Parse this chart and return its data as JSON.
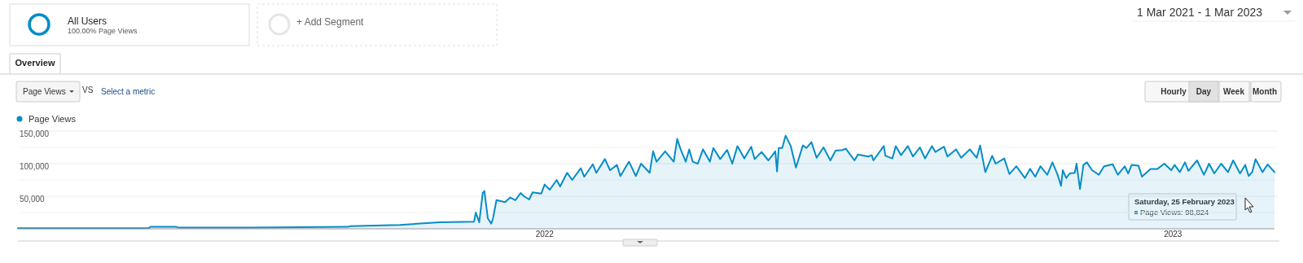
{
  "chart_data": {
    "type": "area",
    "legend": "top left",
    "grid": "y",
    "ylim": [
      0,
      150000
    ],
    "yticks": [
      {
        "value": 25000,
        "label": null
      },
      {
        "value": 50000,
        "label": "50,000"
      },
      {
        "value": 75000,
        "label": null
      },
      {
        "value": 100000,
        "label": "100,000"
      },
      {
        "value": 125000,
        "label": null
      },
      {
        "value": 150000,
        "label": "150,000"
      }
    ],
    "xlim": [
      "2021-03-01",
      "2023-03-01"
    ],
    "xticks": [
      {
        "value": "2022-01-01",
        "label": "2022"
      },
      {
        "value": "2023-01-01",
        "label": "2023"
      }
    ],
    "annotations": [
      "All Users",
      "100.00% Page Views",
      "+ Add Segment",
      "1 Mar 2021 - 1 Mar 2023",
      "Overview",
      "Page Views",
      "VS",
      "Select a metric",
      "Hourly",
      "Day",
      "Week",
      "Month",
      "Saturday, 25 February 2023",
      "Page Views: 98,824"
    ],
    "series": [
      {
        "name": "Page Views",
        "color": "#058dc7",
        "x": [
          "2021-03-01",
          "2021-05-16",
          "2021-05-17",
          "2021-06-01",
          "2021-06-02",
          "2021-07-15",
          "2021-09-09",
          "2021-09-10",
          "2021-10-09",
          "2021-11-01",
          "2021-11-21",
          "2021-11-22",
          "2021-11-24",
          "2021-11-26",
          "2021-11-27",
          "2021-11-29",
          "2021-12-01",
          "2021-12-02",
          "2021-12-04",
          "2021-12-09",
          "2021-12-12",
          "2021-12-15",
          "2021-12-18",
          "2021-12-20",
          "2021-12-23",
          "2021-12-25",
          "2021-12-30",
          "2022-01-01",
          "2022-01-04",
          "2022-01-08",
          "2022-01-10",
          "2022-01-14",
          "2022-01-17",
          "2022-01-22",
          "2022-01-24",
          "2022-01-29",
          "2022-01-31",
          "2022-02-05",
          "2022-02-08",
          "2022-02-12",
          "2022-02-14",
          "2022-02-19",
          "2022-02-23",
          "2022-02-26",
          "2022-03-03",
          "2022-03-05",
          "2022-03-07",
          "2022-03-12",
          "2022-03-17",
          "2022-03-19",
          "2022-03-21",
          "2022-03-24",
          "2022-03-26",
          "2022-03-28",
          "2022-03-31",
          "2022-04-03",
          "2022-04-07",
          "2022-04-09",
          "2022-04-13",
          "2022-04-17",
          "2022-04-20",
          "2022-04-23",
          "2022-04-27",
          "2022-05-01",
          "2022-05-03",
          "2022-05-07",
          "2022-05-11",
          "2022-05-15",
          "2022-05-16",
          "2022-05-17",
          "2022-05-19",
          "2022-05-21",
          "2022-05-24",
          "2022-05-27",
          "2022-05-31",
          "2022-06-02",
          "2022-06-05",
          "2022-06-08",
          "2022-06-12",
          "2022-06-16",
          "2022-06-19",
          "2022-06-23",
          "2022-06-25",
          "2022-06-30",
          "2022-07-02",
          "2022-07-08",
          "2022-07-10",
          "2022-07-11",
          "2022-07-17",
          "2022-07-18",
          "2022-07-22",
          "2022-07-24",
          "2022-07-27",
          "2022-07-31",
          "2022-08-03",
          "2022-08-07",
          "2022-08-10",
          "2022-08-14",
          "2022-08-16",
          "2022-08-21",
          "2022-08-23",
          "2022-08-28",
          "2022-08-31",
          "2022-09-05",
          "2022-09-09",
          "2022-09-11",
          "2022-09-14",
          "2022-09-18",
          "2022-09-20",
          "2022-09-25",
          "2022-09-28",
          "2022-10-02",
          "2022-10-07",
          "2022-10-10",
          "2022-10-13",
          "2022-10-16",
          "2022-10-20",
          "2022-10-23",
          "2022-10-26",
          "2022-10-28",
          "2022-10-29",
          "2022-10-31",
          "2022-11-02",
          "2022-11-05",
          "2022-11-06",
          "2022-11-08",
          "2022-11-10",
          "2022-11-12",
          "2022-11-15",
          "2022-11-19",
          "2022-11-22",
          "2022-11-27",
          "2022-11-30",
          "2022-12-04",
          "2022-12-06",
          "2022-12-08",
          "2022-12-12",
          "2022-12-14",
          "2022-12-19",
          "2022-12-23",
          "2022-12-27",
          "2022-12-31",
          "2023-01-02",
          "2023-01-05",
          "2023-01-08",
          "2023-01-10",
          "2023-01-15",
          "2023-01-19",
          "2023-01-22",
          "2023-01-25",
          "2023-01-29",
          "2023-02-02",
          "2023-02-05",
          "2023-02-09",
          "2023-02-12",
          "2023-02-14",
          "2023-02-16",
          "2023-02-18",
          "2023-02-22",
          "2023-02-25",
          "2023-03-01"
        ],
        "values": [
          1000,
          1000,
          3000,
          3000,
          2000,
          2000,
          3000,
          4000,
          6000,
          10000,
          11000,
          25000,
          10000,
          55000,
          58000,
          16000,
          8000,
          16000,
          44000,
          41000,
          48000,
          44000,
          55000,
          50000,
          45000,
          56000,
          54000,
          68000,
          60000,
          75000,
          65000,
          86000,
          75000,
          93000,
          80000,
          99000,
          86000,
          107000,
          90000,
          98000,
          81000,
          103000,
          81000,
          100000,
          86000,
          119000,
          103000,
          119000,
          103000,
          138000,
          122000,
          103000,
          122000,
          103000,
          100000,
          122000,
          103000,
          124000,
          107000,
          121000,
          100000,
          127000,
          108000,
          126000,
          107000,
          118000,
          105000,
          119000,
          88000,
          124000,
          124000,
          143000,
          127000,
          94000,
          128000,
          124000,
          133000,
          109000,
          125000,
          105000,
          120000,
          121000,
          123000,
          105000,
          114000,
          111000,
          113000,
          105000,
          127000,
          112000,
          108000,
          127000,
          113000,
          127000,
          111000,
          125000,
          108000,
          127000,
          118000,
          126000,
          111000,
          122000,
          109000,
          122000,
          109000,
          128000,
          87000,
          112000,
          100000,
          108000,
          84000,
          96000,
          78000,
          92000,
          80000,
          96000,
          83000,
          102000,
          83000,
          66000,
          90000,
          78000,
          85000,
          86000,
          100000,
          61000,
          98000,
          102000,
          90000,
          83000,
          96000,
          99000,
          83000,
          96000,
          85000,
          98000,
          97000,
          80000,
          92000,
          92000,
          100000,
          90000,
          98000,
          87000,
          102000,
          89000,
          105000,
          83000,
          100000,
          85000,
          100000,
          87000,
          105000,
          85000,
          98000,
          81000,
          87000,
          107000,
          87000,
          98824,
          87000
        ]
      }
    ]
  }
}
